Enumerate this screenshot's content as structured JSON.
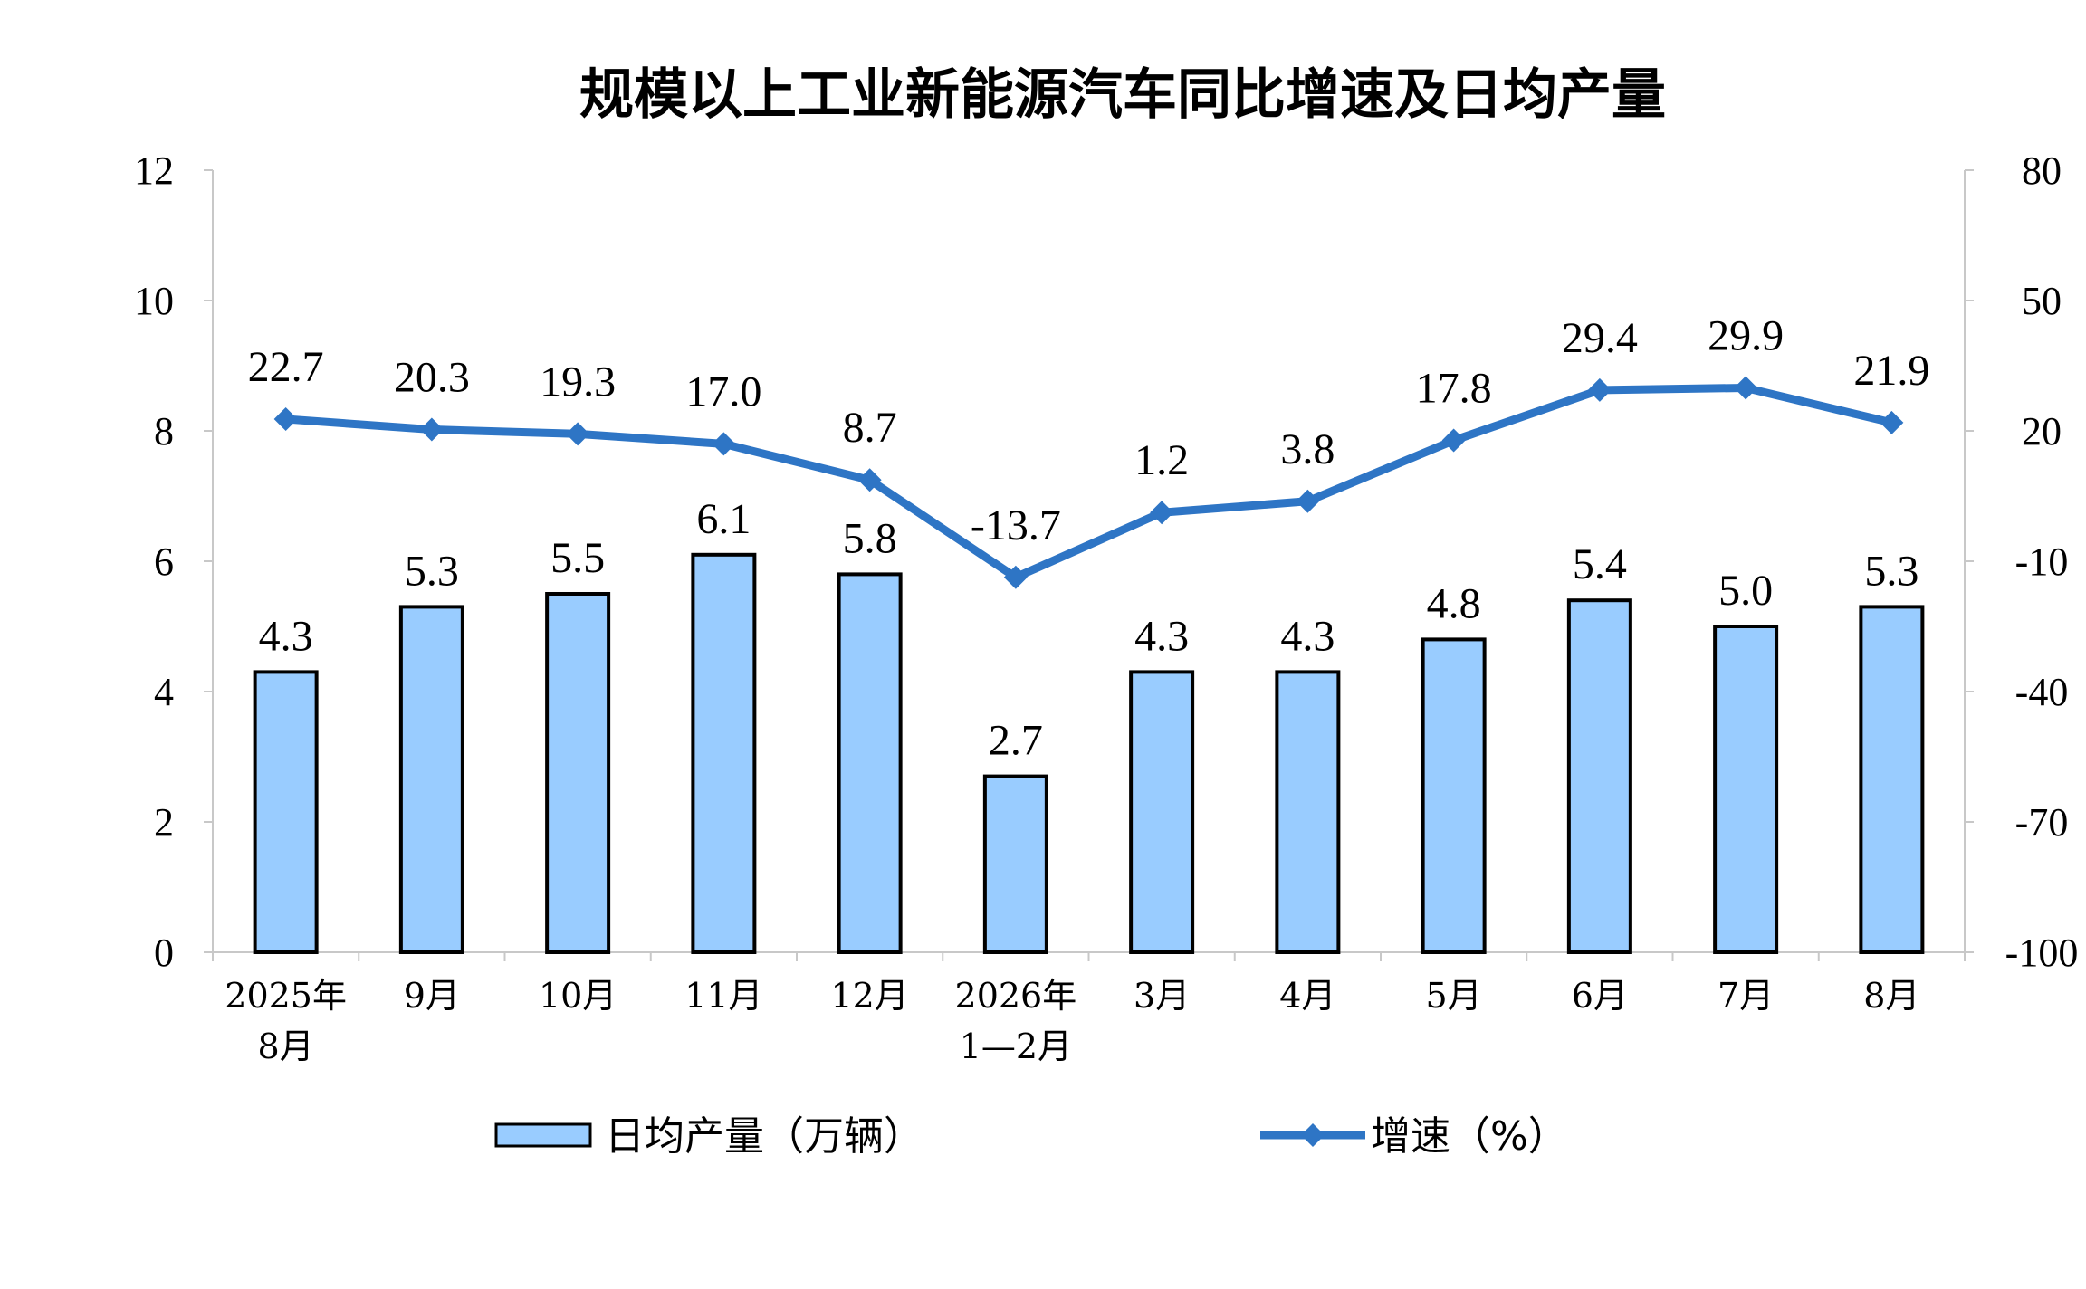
{
  "chart_data": {
    "type": "bar",
    "title": "规模以上工业新能源汽车同比增速及日均产量",
    "categories": [
      [
        "2025年",
        "8月"
      ],
      [
        "9月"
      ],
      [
        "10月"
      ],
      [
        "11月"
      ],
      [
        "12月"
      ],
      [
        "2026年",
        "1—2月"
      ],
      [
        "3月"
      ],
      [
        "4月"
      ],
      [
        "5月"
      ],
      [
        "6月"
      ],
      [
        "7月"
      ],
      [
        "8月"
      ]
    ],
    "series": [
      {
        "name": "日均产量（万辆）",
        "type": "bar",
        "axis": "left",
        "color": "#99CCFF",
        "values": [
          4.3,
          5.3,
          5.5,
          6.1,
          5.8,
          2.7,
          4.3,
          4.3,
          4.8,
          5.4,
          5.0,
          5.3
        ],
        "labels": [
          "4.3",
          "5.3",
          "5.5",
          "6.1",
          "5.8",
          "2.7",
          "4.3",
          "4.3",
          "4.8",
          "5.4",
          "5.0",
          "5.3"
        ]
      },
      {
        "name": "增速（%）",
        "type": "line",
        "axis": "right",
        "color": "#2E75C5",
        "marker": "diamond",
        "values": [
          22.7,
          20.3,
          19.3,
          17.0,
          8.7,
          -13.7,
          1.2,
          3.8,
          17.8,
          29.4,
          29.9,
          21.9
        ],
        "labels": [
          "22.7",
          "20.3",
          "19.3",
          "17.0",
          "8.7",
          "-13.7",
          "1.2",
          "3.8",
          "17.8",
          "29.4",
          "29.9",
          "21.9"
        ]
      }
    ],
    "y_left": {
      "min": 0,
      "max": 12,
      "ticks": [
        "0",
        "2",
        "4",
        "6",
        "8",
        "10",
        "12"
      ]
    },
    "y_right": {
      "min": -100,
      "max": 80,
      "ticks": [
        "-100",
        "-70",
        "-40",
        "-10",
        "20",
        "50",
        "80"
      ]
    },
    "grid": false,
    "legend_position": "bottom"
  }
}
